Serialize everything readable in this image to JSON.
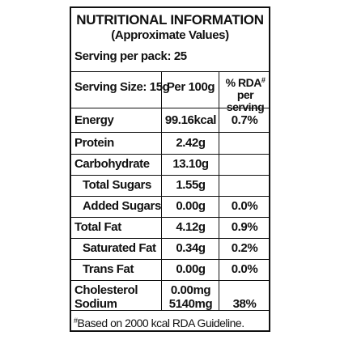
{
  "header": {
    "title": "NUTRITIONAL INFORMATION",
    "subtitle": "(Approximate Values)"
  },
  "serving_per_pack": "Serving per pack: 25",
  "columns": {
    "serving_size": "Serving Size: 15g",
    "per_100g": "Per 100g",
    "rda_prefix": "% RDA",
    "rda_mark": "#",
    "rda_suffix": " per",
    "rda_line2": "serving"
  },
  "rows": [
    {
      "name": "Energy",
      "per100": "99.16kcal",
      "rda": "0.7%"
    },
    {
      "name": "Protein",
      "per100": "2.42g",
      "rda": ""
    },
    {
      "name": "Carbohydrate",
      "per100": "13.10g",
      "rda": ""
    },
    {
      "name": "Total Sugars",
      "per100": "1.55g",
      "rda": ""
    },
    {
      "name": "Added Sugars",
      "per100": "0.00g",
      "rda": "0.0%"
    },
    {
      "name": "Total Fat",
      "per100": "4.12g",
      "rda": "0.9%"
    },
    {
      "name": "Saturated Fat",
      "per100": "0.34g",
      "rda": "0.2%"
    },
    {
      "name": "Trans Fat",
      "per100": "0.00g",
      "rda": "0.0%"
    },
    {
      "name": "Cholesterol",
      "per100": "0.00mg",
      "rda": ""
    },
    {
      "name": "Sodium",
      "per100": "5140mg",
      "rda": "38%"
    }
  ],
  "footnote": {
    "mark": "#",
    "text": "Based on 2000 kcal RDA Guideline."
  }
}
